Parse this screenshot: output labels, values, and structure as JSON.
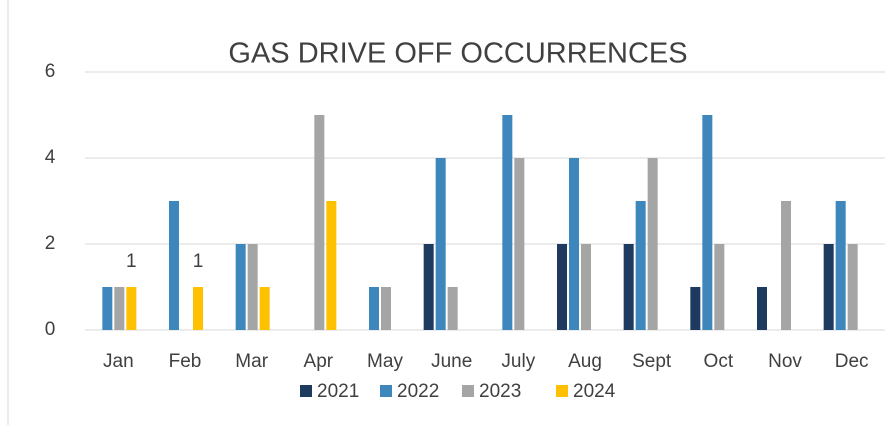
{
  "chart_data": {
    "type": "bar",
    "title": "GAS DRIVE OFF OCCURRENCES",
    "categories": [
      "Jan",
      "Feb",
      "Mar",
      "Apr",
      "May",
      "June",
      "July",
      "Aug",
      "Sept",
      "Oct",
      "Nov",
      "Dec"
    ],
    "series": [
      {
        "name": "2021",
        "color": "#1f3a5f",
        "values": [
          0,
          0,
          0,
          0,
          0,
          2,
          0,
          2,
          2,
          1,
          1,
          2
        ]
      },
      {
        "name": "2022",
        "color": "#3d87bd",
        "values": [
          1,
          3,
          2,
          0,
          1,
          4,
          5,
          4,
          3,
          5,
          0,
          3
        ]
      },
      {
        "name": "2023",
        "color": "#a5a5a5",
        "values": [
          1,
          0,
          2,
          5,
          1,
          1,
          4,
          2,
          4,
          2,
          3,
          2
        ]
      },
      {
        "name": "2024",
        "color": "#ffc000",
        "values": [
          1,
          1,
          1,
          3,
          0,
          0,
          0,
          0,
          0,
          0,
          0,
          0
        ],
        "value_labels": [
          "1",
          "1",
          null,
          null,
          null,
          null,
          null,
          null,
          null,
          null,
          null,
          null
        ]
      }
    ],
    "ylim": [
      0,
      6
    ],
    "yticks": [
      0,
      2,
      4,
      6
    ],
    "grid": true,
    "legend": "bottom"
  }
}
